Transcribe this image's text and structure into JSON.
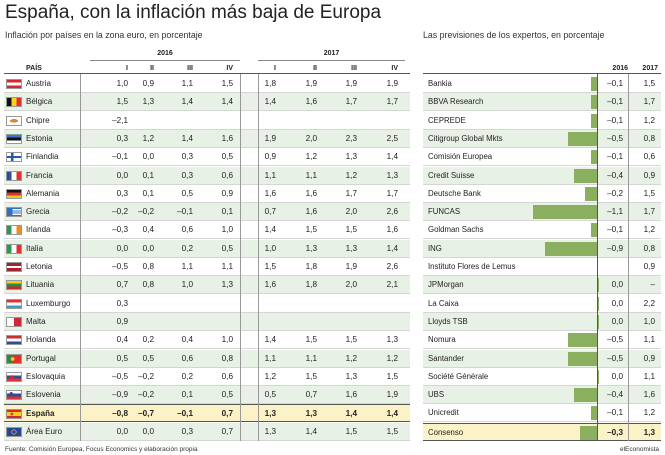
{
  "title": "España, con la inflación más baja de Europa",
  "chart_data": [
    {
      "type": "table",
      "title": "Inflación por países en la zona euro, en porcentaje",
      "country_header": "PAÍS",
      "years": [
        "2016",
        "2017"
      ],
      "quarters": [
        "I",
        "II",
        "III",
        "IV"
      ],
      "rows": [
        {
          "country": "Austria",
          "flag": "austria",
          "values": [
            "1,0",
            "0,9",
            "1,1",
            "1,5",
            "1,8",
            "1,9",
            "1,9",
            "1,9"
          ]
        },
        {
          "country": "Bélgica",
          "flag": "belgium",
          "values": [
            "1,5",
            "1,3",
            "1,4",
            "1,4",
            "1,4",
            "1,6",
            "1,7",
            "1,7"
          ]
        },
        {
          "country": "Chipre",
          "flag": "cyprus",
          "values": [
            "–2,1",
            "",
            "",
            "",
            "",
            "",
            "",
            ""
          ]
        },
        {
          "country": "Estonia",
          "flag": "estonia",
          "values": [
            "0,3",
            "1,2",
            "1,4",
            "1,6",
            "1,9",
            "2,0",
            "2,3",
            "2,5"
          ]
        },
        {
          "country": "Finlandia",
          "flag": "finland",
          "values": [
            "–0,1",
            "0,0",
            "0,3",
            "0,5",
            "0,9",
            "1,2",
            "1,3",
            "1,4"
          ]
        },
        {
          "country": "Francia",
          "flag": "france",
          "values": [
            "0,0",
            "0,1",
            "0,3",
            "0,6",
            "1,1",
            "1,1",
            "1,2",
            "1,3"
          ]
        },
        {
          "country": "Alemania",
          "flag": "germany",
          "values": [
            "0,3",
            "0,1",
            "0,5",
            "0,9",
            "1,6",
            "1,6",
            "1,7",
            "1,7"
          ]
        },
        {
          "country": "Grecia",
          "flag": "greece",
          "values": [
            "–0,2",
            "–0,2",
            "–0,1",
            "0,1",
            "0,7",
            "1,6",
            "2,0",
            "2,6"
          ]
        },
        {
          "country": "Irlanda",
          "flag": "ireland",
          "values": [
            "–0,3",
            "0,4",
            "0,6",
            "1,0",
            "1,4",
            "1,5",
            "1,5",
            "1,6"
          ]
        },
        {
          "country": "Italia",
          "flag": "italy",
          "values": [
            "0,0",
            "0,0",
            "0,2",
            "0,5",
            "1,0",
            "1,3",
            "1,3",
            "1,4"
          ]
        },
        {
          "country": "Letonia",
          "flag": "latvia",
          "values": [
            "–0,5",
            "0,8",
            "1,1",
            "1,1",
            "1,5",
            "1,8",
            "1,9",
            "2,6"
          ]
        },
        {
          "country": "Lituania",
          "flag": "lithuania",
          "values": [
            "0,7",
            "0,8",
            "1,0",
            "1,3",
            "1,6",
            "1,8",
            "2,0",
            "2,1"
          ]
        },
        {
          "country": "Luxemburgo",
          "flag": "luxembourg",
          "values": [
            "0,3",
            "",
            "",
            "",
            "",
            "",
            "",
            ""
          ]
        },
        {
          "country": "Malta",
          "flag": "malta",
          "values": [
            "0,9",
            "",
            "",
            "",
            "",
            "",
            "",
            ""
          ]
        },
        {
          "country": "Holanda",
          "flag": "netherlands",
          "values": [
            "0,4",
            "0,2",
            "0,4",
            "1,0",
            "1,4",
            "1,5",
            "1,5",
            "1,3"
          ]
        },
        {
          "country": "Portugal",
          "flag": "portugal",
          "values": [
            "0,5",
            "0,5",
            "0,6",
            "0,8",
            "1,1",
            "1,1",
            "1,2",
            "1,2"
          ]
        },
        {
          "country": "Eslovaquia",
          "flag": "slovakia",
          "values": [
            "–0,5",
            "–0,2",
            "0,2",
            "0,6",
            "1,2",
            "1,5",
            "1,3",
            "1,5"
          ]
        },
        {
          "country": "Eslovenia",
          "flag": "slovenia",
          "values": [
            "–0,9",
            "–0,2",
            "0,1",
            "0,5",
            "0,5",
            "0,7",
            "1,6",
            "1,9"
          ]
        },
        {
          "country": "España",
          "flag": "spain",
          "values": [
            "–0,8",
            "–0,7",
            "–0,1",
            "0,7",
            "1,3",
            "1,3",
            "1,4",
            "1,4"
          ],
          "highlight": true
        },
        {
          "country": "Área Euro",
          "flag": "eu",
          "values": [
            "0,0",
            "0,0",
            "0,3",
            "0,7",
            "1,3",
            "1,4",
            "1,5",
            "1,5"
          ]
        }
      ]
    },
    {
      "type": "bar",
      "title": "Las previsiones de los expertos, en porcentaje",
      "years": [
        "2016",
        "2017"
      ],
      "bar_axis_min": -1.1,
      "bar_axis_max": 0,
      "colors": {
        "bar": "#8ab05f",
        "shade": "#e8f1e5",
        "highlight": "#fbf2c8"
      },
      "rows": [
        {
          "name": "Bankia",
          "v2016": -0.1,
          "t2016": "–0,1",
          "t2017": "1,5"
        },
        {
          "name": "BBVA Research",
          "v2016": -0.1,
          "t2016": "–0,1",
          "t2017": "1,7"
        },
        {
          "name": "CEPREDE",
          "v2016": -0.1,
          "t2016": "–0,1",
          "t2017": "1,2"
        },
        {
          "name": "Citigroup Global Mkts",
          "v2016": -0.5,
          "t2016": "–0,5",
          "t2017": "0,8"
        },
        {
          "name": "Comisión Europea",
          "v2016": -0.1,
          "t2016": "–0,1",
          "t2017": "0,6"
        },
        {
          "name": "Credit Suisse",
          "v2016": -0.4,
          "t2016": "–0,4",
          "t2017": "0,9"
        },
        {
          "name": "Deutsche Bank",
          "v2016": -0.2,
          "t2016": "–0,2",
          "t2017": "1,5"
        },
        {
          "name": "FUNCAS",
          "v2016": -1.1,
          "t2016": "–1,1",
          "t2017": "1,7"
        },
        {
          "name": "Goldman Sachs",
          "v2016": -0.1,
          "t2016": "–0,1",
          "t2017": "1,2"
        },
        {
          "name": "ING",
          "v2016": -0.9,
          "t2016": "–0,9",
          "t2017": "0,8"
        },
        {
          "name": "Instituto Flores de Lemus",
          "v2016": null,
          "t2016": "",
          "t2017": "0,9"
        },
        {
          "name": "JPMorgan",
          "v2016": 0.0,
          "t2016": "0,0",
          "t2017": "–"
        },
        {
          "name": "La Caixa",
          "v2016": 0.0,
          "t2016": "0,0",
          "t2017": "2,2"
        },
        {
          "name": "Lloyds TSB",
          "v2016": 0.0,
          "t2016": "0,0",
          "t2017": "1,0"
        },
        {
          "name": "Nomura",
          "v2016": -0.5,
          "t2016": "–0,5",
          "t2017": "1,1"
        },
        {
          "name": "Santander",
          "v2016": -0.5,
          "t2016": "–0,5",
          "t2017": "0,9"
        },
        {
          "name": "Société Générale",
          "v2016": 0.0,
          "t2016": "0,0",
          "t2017": "1,1"
        },
        {
          "name": "UBS",
          "v2016": -0.4,
          "t2016": "–0,4",
          "t2017": "1,6"
        },
        {
          "name": "Unicredit",
          "v2016": -0.1,
          "t2016": "–0,1",
          "t2017": "1,2"
        },
        {
          "name": "Consenso",
          "v2016": -0.3,
          "t2016": "–0,3",
          "t2017": "1,3",
          "highlight": true
        }
      ]
    }
  ],
  "footer": {
    "source": "Fuente: Comisión Europea, Focus Economics y elaboración propia",
    "brand": "elEconomista"
  }
}
